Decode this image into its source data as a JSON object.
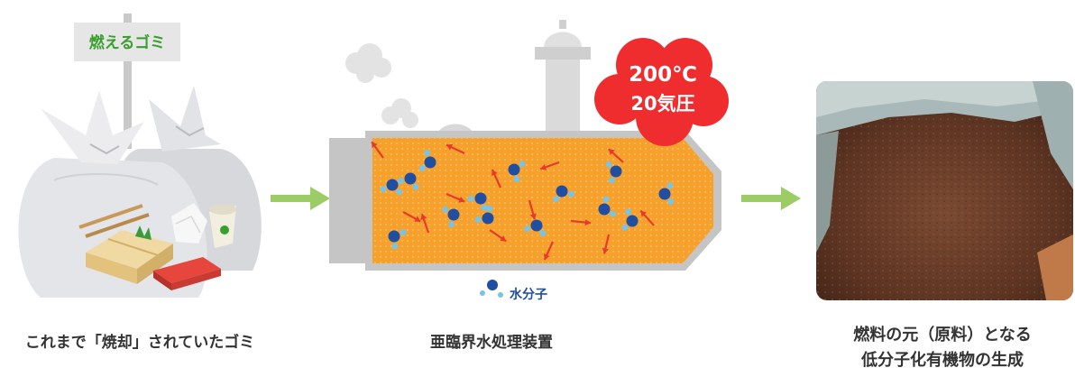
{
  "garbage_panel": {
    "sign_label": "燃えるゴミ",
    "caption": "これまで「焼却」されていたゴミ"
  },
  "reactor_panel": {
    "temperature": "200℃",
    "pressure": "20気圧",
    "legend_label": "水分子",
    "caption": "亜臨界水処理装置"
  },
  "output_panel": {
    "caption_line1": "燃料の元（原料）となる",
    "caption_line2": "低分子化有機物の生成"
  },
  "colors": {
    "arrow": "#9ccc65",
    "reactor_fill": "#f7a02c",
    "reactor_border": "#b8b8b8",
    "badge": "#ef2d2f",
    "molecule_center": "#1f4ea3",
    "molecule_h": "#79c4e6",
    "motion_arrow": "#e8392b"
  }
}
